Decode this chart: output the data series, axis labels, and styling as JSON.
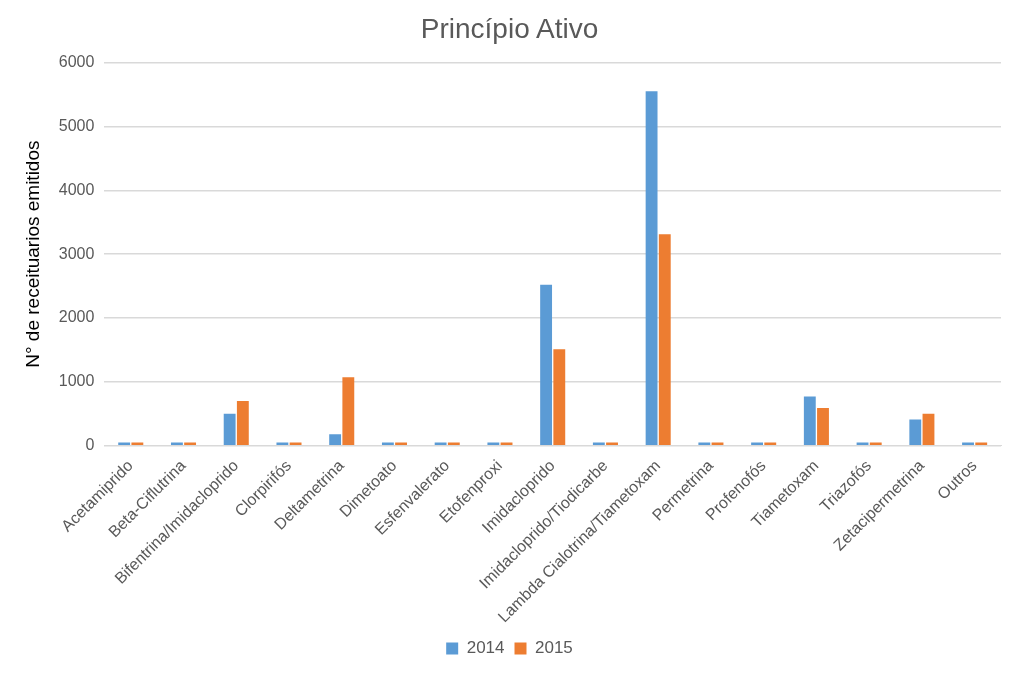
{
  "chart_data": {
    "type": "bar",
    "title": "Princípio Ativo",
    "ylabel": "N° de receituarios emitidos",
    "categories": [
      "Acetamiprido",
      "Beta-Ciflutrina",
      "Bifentrina/Imidacloprido",
      "Clorpirifós",
      "Deltametrina",
      "Dimetoato",
      "Esfenvalerato",
      "Etofenproxi",
      "Imidacloprido",
      "Imidacloprido/Tiodicarbe",
      "Lambda Cialotrina/Tiametoxam",
      "Permetrina",
      "Profenofós",
      "Tiametoxam",
      "Triazofós",
      "Zetacipermetrina",
      "Outros"
    ],
    "series": [
      {
        "name": "2014",
        "color": "#5b9bd5",
        "values": [
          50,
          50,
          500,
          50,
          180,
          50,
          50,
          50,
          2520,
          50,
          5550,
          50,
          50,
          770,
          50,
          410,
          50
        ]
      },
      {
        "name": "2015",
        "color": "#ed7d31",
        "values": [
          50,
          50,
          700,
          50,
          1070,
          50,
          50,
          50,
          1510,
          50,
          3310,
          50,
          50,
          590,
          50,
          500,
          50
        ]
      }
    ],
    "ylim": [
      0,
      6000
    ],
    "yticks": [
      0,
      1000,
      2000,
      3000,
      4000,
      5000,
      6000
    ],
    "grid": "y",
    "legend": "bottom"
  }
}
